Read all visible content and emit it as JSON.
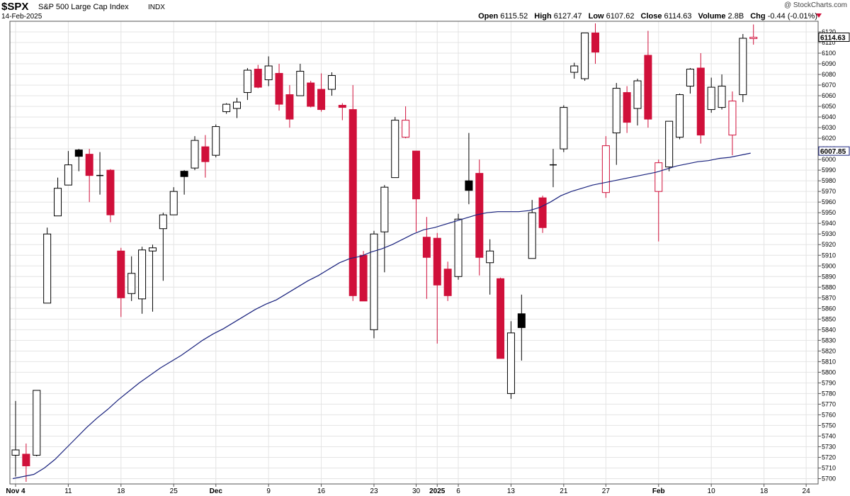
{
  "header": {
    "symbol": "$SPX",
    "description": "S&P 500 Large Cap Index",
    "exchange": "INDX",
    "date": "14-Feb-2025",
    "watermark": "@ StockCharts.com",
    "open_label": "Open",
    "open_value": "6115.52",
    "high_label": "High",
    "high_value": "6127.47",
    "low_label": "Low",
    "low_value": "6107.62",
    "close_label": "Close",
    "close_value": "6114.63",
    "volume_label": "Volume",
    "volume_value": "2.8B",
    "chg_label": "Chg",
    "chg_value": "-0.44 (-0.01%)"
  },
  "colors": {
    "up": "#ffffff",
    "down": "#d0103a",
    "wick": "#000000",
    "ma": "#1a237e",
    "grid": "#e4e4e4"
  },
  "chart_data": {
    "type": "candlestick",
    "ylim": [
      5695,
      6130
    ],
    "y_ticks": [
      5700,
      5710,
      5720,
      5730,
      5740,
      5750,
      5760,
      5770,
      5780,
      5790,
      5800,
      5810,
      5820,
      5830,
      5840,
      5850,
      5860,
      5870,
      5880,
      5890,
      5900,
      5910,
      5920,
      5930,
      5940,
      5950,
      5960,
      5970,
      5980,
      5990,
      6000,
      6010,
      6020,
      6030,
      6040,
      6050,
      6060,
      6070,
      6080,
      6090,
      6100,
      6110,
      6120
    ],
    "x_ticks": [
      {
        "label": "Nov 4",
        "index": 0,
        "bold": true
      },
      {
        "label": "11",
        "index": 5,
        "bold": false
      },
      {
        "label": "18",
        "index": 10,
        "bold": false
      },
      {
        "label": "25",
        "index": 15,
        "bold": false
      },
      {
        "label": "Dec",
        "index": 19,
        "bold": true
      },
      {
        "label": "9",
        "index": 24,
        "bold": false
      },
      {
        "label": "16",
        "index": 29,
        "bold": false
      },
      {
        "label": "23",
        "index": 34,
        "bold": false
      },
      {
        "label": "30",
        "index": 38,
        "bold": false
      },
      {
        "label": "2025",
        "index": 40,
        "bold": true
      },
      {
        "label": "6",
        "index": 42,
        "bold": false
      },
      {
        "label": "13",
        "index": 47,
        "bold": false
      },
      {
        "label": "21",
        "index": 52,
        "bold": false
      },
      {
        "label": "27",
        "index": 56,
        "bold": false
      },
      {
        "label": "Feb",
        "index": 61,
        "bold": true
      },
      {
        "label": "10",
        "index": 66,
        "bold": false
      },
      {
        "label": "18",
        "index": 71,
        "bold": false
      },
      {
        "label": "24",
        "index": 75,
        "bold": false
      }
    ],
    "n_slots": 76,
    "candles": [
      {
        "o": 5722,
        "h": 5773,
        "l": 5702,
        "c": 5727,
        "k": "up"
      },
      {
        "o": 5723,
        "h": 5733,
        "l": 5697,
        "c": 5712,
        "k": "down"
      },
      {
        "o": 5722,
        "h": 5783,
        "l": 5721,
        "c": 5783,
        "k": "up"
      },
      {
        "o": 5865,
        "h": 5936,
        "l": 5865,
        "c": 5930,
        "k": "up"
      },
      {
        "o": 5947,
        "h": 5983,
        "l": 5947,
        "c": 5973,
        "k": "up"
      },
      {
        "o": 5976,
        "h": 6008,
        "l": 5976,
        "c": 5995,
        "k": "up"
      },
      {
        "o": 6003,
        "h": 6010,
        "l": 5989,
        "c": 6009,
        "k": "solid"
      },
      {
        "o": 6005,
        "h": 6010,
        "l": 5960,
        "c": 5985,
        "k": "down"
      },
      {
        "o": 5983,
        "h": 6007,
        "l": 5967,
        "c": 5985,
        "k": "doji"
      },
      {
        "o": 5990,
        "h": 5991,
        "l": 5941,
        "c": 5948,
        "k": "down"
      },
      {
        "o": 5914,
        "h": 5917,
        "l": 5852,
        "c": 5870,
        "k": "down"
      },
      {
        "o": 5874,
        "h": 5909,
        "l": 5867,
        "c": 5893,
        "k": "up"
      },
      {
        "o": 5869,
        "h": 5918,
        "l": 5855,
        "c": 5915,
        "k": "up"
      },
      {
        "o": 5914,
        "h": 5920,
        "l": 5857,
        "c": 5917,
        "k": "up"
      },
      {
        "o": 5935,
        "h": 5950,
        "l": 5886,
        "c": 5948,
        "k": "up"
      },
      {
        "o": 5948,
        "h": 5974,
        "l": 5948,
        "c": 5970,
        "k": "up"
      },
      {
        "o": 5984,
        "h": 5990,
        "l": 5967,
        "c": 5989,
        "k": "solid"
      },
      {
        "o": 5992,
        "h": 6022,
        "l": 5990,
        "c": 6018,
        "k": "up"
      },
      {
        "o": 6012,
        "h": 6023,
        "l": 5983,
        "c": 5998,
        "k": "down"
      },
      {
        "o": 6004,
        "h": 6033,
        "l": 6002,
        "c": 6031,
        "k": "up"
      },
      {
        "o": 6045,
        "h": 6053,
        "l": 6043,
        "c": 6052,
        "k": "up"
      },
      {
        "o": 6048,
        "h": 6058,
        "l": 6039,
        "c": 6054,
        "k": "up"
      },
      {
        "o": 6063,
        "h": 6086,
        "l": 6056,
        "c": 6084,
        "k": "up"
      },
      {
        "o": 6085,
        "h": 6089,
        "l": 6067,
        "c": 6068,
        "k": "down"
      },
      {
        "o": 6075,
        "h": 6097,
        "l": 6069,
        "c": 6088,
        "k": "up"
      },
      {
        "o": 6081,
        "h": 6090,
        "l": 6046,
        "c": 6052,
        "k": "down"
      },
      {
        "o": 6061,
        "h": 6070,
        "l": 6030,
        "c": 6038,
        "k": "down"
      },
      {
        "o": 6060,
        "h": 6090,
        "l": 6060,
        "c": 6083,
        "k": "up"
      },
      {
        "o": 6072,
        "h": 6074,
        "l": 6049,
        "c": 6050,
        "k": "down"
      },
      {
        "o": 6066,
        "h": 6081,
        "l": 6045,
        "c": 6047,
        "k": "down"
      },
      {
        "o": 6066,
        "h": 6082,
        "l": 6060,
        "c": 6079,
        "k": "up"
      },
      {
        "o": 6051,
        "h": 6053,
        "l": 6037,
        "c": 6049,
        "k": "down"
      },
      {
        "o": 6047,
        "h": 6070,
        "l": 5867,
        "c": 5872,
        "k": "down"
      },
      {
        "o": 5910,
        "h": 5914,
        "l": 5867,
        "c": 5867,
        "k": "down"
      },
      {
        "o": 5840,
        "h": 5933,
        "l": 5832,
        "c": 5930,
        "k": "up"
      },
      {
        "o": 5932,
        "h": 5976,
        "l": 5894,
        "c": 5974,
        "k": "up"
      },
      {
        "o": 5983,
        "h": 6040,
        "l": 5983,
        "c": 6037,
        "k": "up"
      },
      {
        "o": 6037,
        "h": 6050,
        "l": 6020,
        "c": 6021,
        "k": "hollow"
      },
      {
        "o": 6008,
        "h": 6008,
        "l": 5932,
        "c": 5963,
        "k": "down"
      },
      {
        "o": 5927,
        "h": 5946,
        "l": 5869,
        "c": 5908,
        "k": "down"
      },
      {
        "o": 5926,
        "h": 5931,
        "l": 5827,
        "c": 5882,
        "k": "down"
      },
      {
        "o": 5897,
        "h": 5904,
        "l": 5867,
        "c": 5872,
        "k": "down"
      },
      {
        "o": 5890,
        "h": 5949,
        "l": 5887,
        "c": 5944,
        "k": "up"
      },
      {
        "o": 5980,
        "h": 6025,
        "l": 5958,
        "c": 5971,
        "k": "solid"
      },
      {
        "o": 5987,
        "h": 6000,
        "l": 5891,
        "c": 5908,
        "k": "down"
      },
      {
        "o": 5914,
        "h": 5925,
        "l": 5873,
        "c": 5903,
        "k": "up"
      },
      {
        "o": 5888,
        "h": 5889,
        "l": 5813,
        "c": 5813,
        "k": "down"
      },
      {
        "o": 5780,
        "h": 5848,
        "l": 5775,
        "c": 5837,
        "k": "up"
      },
      {
        "o": 5842,
        "h": 5873,
        "l": 5811,
        "c": 5855,
        "k": "solid"
      },
      {
        "o": 5907,
        "h": 5962,
        "l": 5907,
        "c": 5950,
        "k": "up"
      },
      {
        "o": 5964,
        "h": 5966,
        "l": 5931,
        "c": 5936,
        "k": "down"
      },
      {
        "o": 5994,
        "h": 6010,
        "l": 5974,
        "c": 5995,
        "k": "doji"
      },
      {
        "o": 6010,
        "h": 6051,
        "l": 6007,
        "c": 6049,
        "k": "up"
      },
      {
        "o": 6082,
        "h": 6091,
        "l": 6076,
        "c": 6088,
        "k": "up"
      },
      {
        "o": 6076,
        "h": 6119,
        "l": 6074,
        "c": 6119,
        "k": "up"
      },
      {
        "o": 6119,
        "h": 6128,
        "l": 6090,
        "c": 6101,
        "k": "down"
      },
      {
        "o": 5969,
        "h": 6022,
        "l": 5964,
        "c": 6013,
        "k": "hollow"
      },
      {
        "o": 6025,
        "h": 6072,
        "l": 5995,
        "c": 6067,
        "k": "up"
      },
      {
        "o": 6063,
        "h": 6069,
        "l": 6025,
        "c": 6035,
        "k": "down"
      },
      {
        "o": 6048,
        "h": 6076,
        "l": 6032,
        "c": 6074,
        "k": "up"
      },
      {
        "o": 6098,
        "h": 6121,
        "l": 6030,
        "c": 6038,
        "k": "down"
      },
      {
        "o": 5970,
        "h": 6000,
        "l": 5923,
        "c": 5997,
        "k": "hollow"
      },
      {
        "o": 5993,
        "h": 6036,
        "l": 5989,
        "c": 6036,
        "k": "up"
      },
      {
        "o": 6021,
        "h": 6062,
        "l": 6019,
        "c": 6061,
        "k": "up"
      },
      {
        "o": 6069,
        "h": 6086,
        "l": 6062,
        "c": 6085,
        "k": "up"
      },
      {
        "o": 6086,
        "h": 6100,
        "l": 6015,
        "c": 6023,
        "k": "down"
      },
      {
        "o": 6047,
        "h": 6077,
        "l": 6044,
        "c": 6068,
        "k": "up"
      },
      {
        "o": 6049,
        "h": 6080,
        "l": 6047,
        "c": 6069,
        "k": "up"
      },
      {
        "o": 6055,
        "h": 6064,
        "l": 6004,
        "c": 6023,
        "k": "hollow"
      },
      {
        "o": 6061,
        "h": 6118,
        "l": 6054,
        "c": 6114,
        "k": "up"
      },
      {
        "o": 6115,
        "h": 6127,
        "l": 6108,
        "c": 6115,
        "k": "hollow"
      }
    ],
    "ma": [
      5700,
      5702,
      5704,
      5710,
      5718,
      5728,
      5738,
      5748,
      5757,
      5765,
      5774,
      5782,
      5790,
      5797,
      5804,
      5810,
      5816,
      5823,
      5830,
      5836,
      5841,
      5847,
      5853,
      5859,
      5864,
      5868,
      5874,
      5880,
      5886,
      5891,
      5897,
      5903,
      5907,
      5909,
      5913,
      5916,
      5920,
      5925,
      5930,
      5934,
      5936,
      5939,
      5942,
      5945,
      5948,
      5950,
      5951,
      5951,
      5951,
      5952,
      5955,
      5960,
      5966,
      5970,
      5973,
      5976,
      5978,
      5980,
      5982,
      5984,
      5986,
      5988,
      5991,
      5994,
      5996,
      5998,
      5999,
      6001,
      6002,
      6004,
      6006
    ],
    "last_close_tag": "6114.63",
    "ma_tag": "6007.85",
    "ma_tag_value": 6008
  }
}
